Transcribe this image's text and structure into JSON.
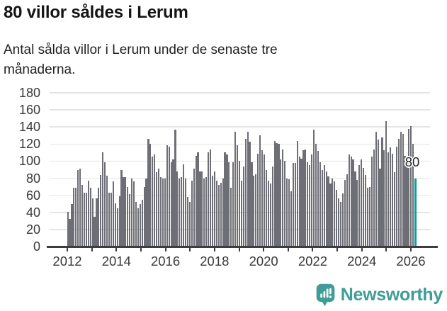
{
  "header": {
    "title": "80 villor såldes i Lerum",
    "subtitle": "Antal sålda villor i Lerum under de senaste tre månaderna."
  },
  "chart_data": {
    "type": "bar",
    "title": "80 villor såldes i Lerum",
    "subtitle": "Antal sålda villor i Lerum under de senaste tre månaderna.",
    "xlabel": "",
    "ylabel": "",
    "ylim": [
      0,
      180
    ],
    "grid": true,
    "legend": "none",
    "x_start": "2012-01",
    "x_interval": "month",
    "y_ticks": [
      0,
      20,
      40,
      60,
      80,
      100,
      120,
      140,
      160,
      180
    ],
    "x_tick_years": [
      2012,
      2013,
      2014,
      2015,
      2016,
      2017,
      2018,
      2019,
      2020,
      2021,
      2022,
      2023,
      2024,
      2025,
      2026
    ],
    "x_tick_labels": [
      "2012",
      "2014",
      "2016",
      "2018",
      "2020",
      "2022",
      "2024",
      "2026"
    ],
    "bar_color": "#6e6e76",
    "values": [
      41,
      32,
      50,
      69,
      69,
      90,
      91,
      72,
      63,
      63,
      77,
      69,
      56,
      35,
      56,
      69,
      84,
      110,
      99,
      83,
      63,
      63,
      76,
      51,
      45,
      59,
      90,
      81,
      81,
      70,
      61,
      80,
      76,
      52,
      45,
      50,
      55,
      70,
      80,
      126,
      120,
      105,
      108,
      87,
      91,
      81,
      80,
      80,
      119,
      117,
      99,
      102,
      137,
      88,
      80,
      81,
      96,
      80,
      58,
      52,
      77,
      91,
      106,
      110,
      88,
      88,
      80,
      81,
      110,
      114,
      83,
      88,
      77,
      72,
      75,
      80,
      110,
      108,
      99,
      69,
      99,
      134,
      119,
      100,
      77,
      94,
      126,
      134,
      123,
      99,
      83,
      85,
      109,
      130,
      113,
      108,
      90,
      77,
      74,
      94,
      124,
      121,
      120,
      102,
      114,
      100,
      80,
      79,
      65,
      98,
      98,
      124,
      105,
      103,
      113,
      114,
      99,
      95,
      108,
      137,
      120,
      112,
      99,
      90,
      95,
      88,
      82,
      74,
      80,
      76,
      66,
      56,
      52,
      62,
      78,
      85,
      108,
      105,
      102,
      88,
      78,
      95,
      102,
      92,
      84,
      69,
      70,
      105,
      114,
      134,
      125,
      91,
      128,
      113,
      147,
      110,
      116,
      109,
      87,
      117,
      126,
      134,
      132,
      106,
      99,
      138,
      141,
      120,
      80
    ],
    "highlight": {
      "index": 168,
      "value": 80,
      "label": "80",
      "color": "#0e9b9b"
    }
  },
  "footer": {
    "brand": "Newsworthy",
    "brand_color": "#3f9c96"
  },
  "colors": {
    "background": "#ffffff",
    "bar": "#6e6e76",
    "highlight": "#0e9b9b",
    "gridline": "#e4e4e4",
    "axis": "#3d3d3d",
    "tick_label": "#3a3a3a",
    "brand": "#3f9c96"
  }
}
